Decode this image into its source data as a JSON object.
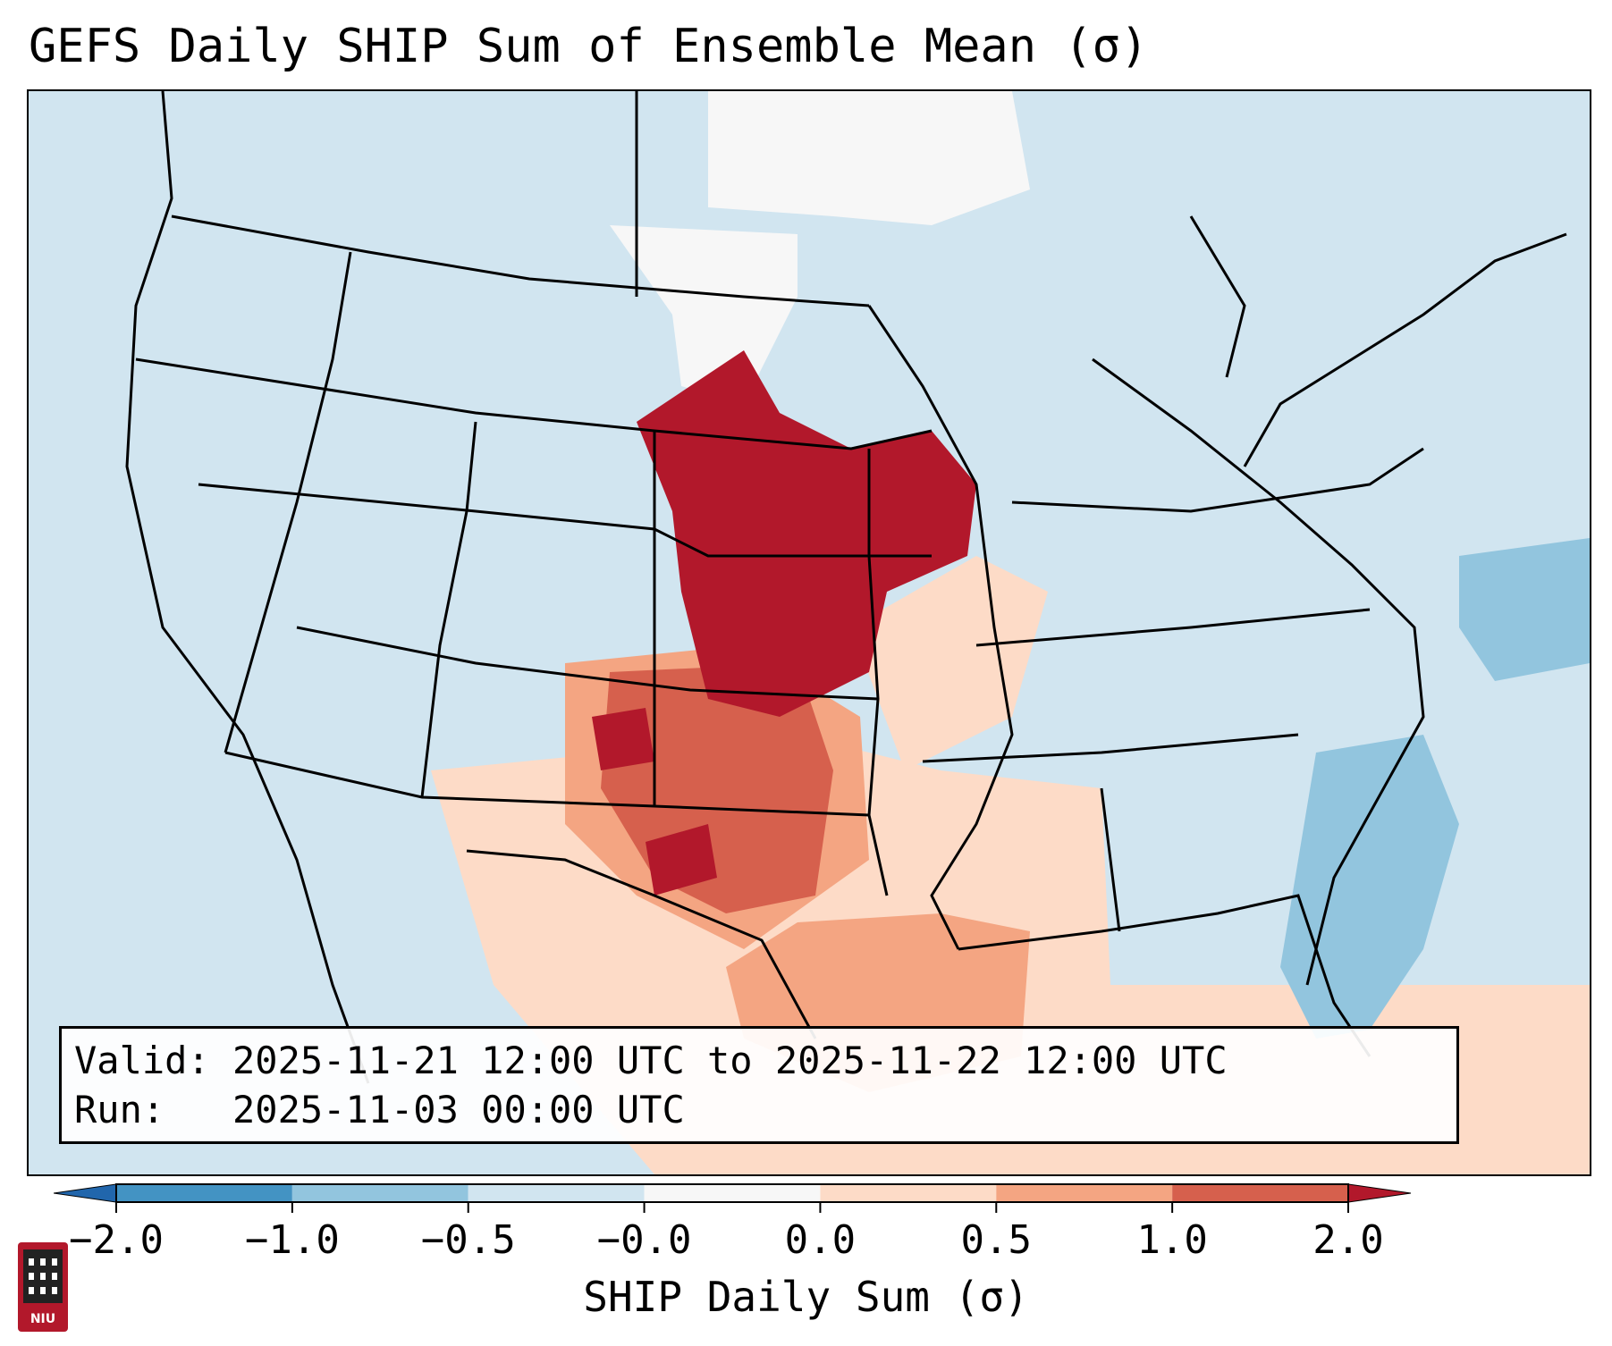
{
  "title": "GEFS Daily SHIP Sum of Ensemble Mean (σ)",
  "valid_label": "Valid:",
  "valid_value": "2025-11-21 12:00 UTC to 2025-11-22 12:00 UTC",
  "run_label": "Run:",
  "run_value": "2025-11-03 00:00 UTC",
  "colorbar": {
    "label": "SHIP Daily Sum (σ)",
    "ticks": [
      "−2.0",
      "−1.0",
      "−0.5",
      "−0.0",
      "0.0",
      "0.5",
      "1.0",
      "2.0"
    ],
    "colors": [
      "#4393c3",
      "#92c5de",
      "#d1e5f0",
      "#f7f7f7",
      "#fddbc7",
      "#f4a582",
      "#d6604d",
      "#b2182b"
    ]
  },
  "logo_text": "NIU",
  "map": {
    "region": "contiguous-united-states",
    "projection": "lambert-conformal",
    "background_color": "#d1e5f0",
    "hotspots": [
      {
        "region": "central-plains-kansas-nebraska",
        "level": "above 2.0"
      },
      {
        "region": "iowa-minnesota",
        "level": "above 2.0"
      },
      {
        "region": "west-texas-oklahoma",
        "level": "1.0 to 2.0"
      },
      {
        "region": "gulf-of-mexico",
        "level": "0.5 to 1.0"
      },
      {
        "region": "atlantic-off-southeast-coast",
        "level": "-1.0 to -0.5"
      },
      {
        "region": "canada-north",
        "level": "-0.0 to 0.0"
      }
    ]
  }
}
